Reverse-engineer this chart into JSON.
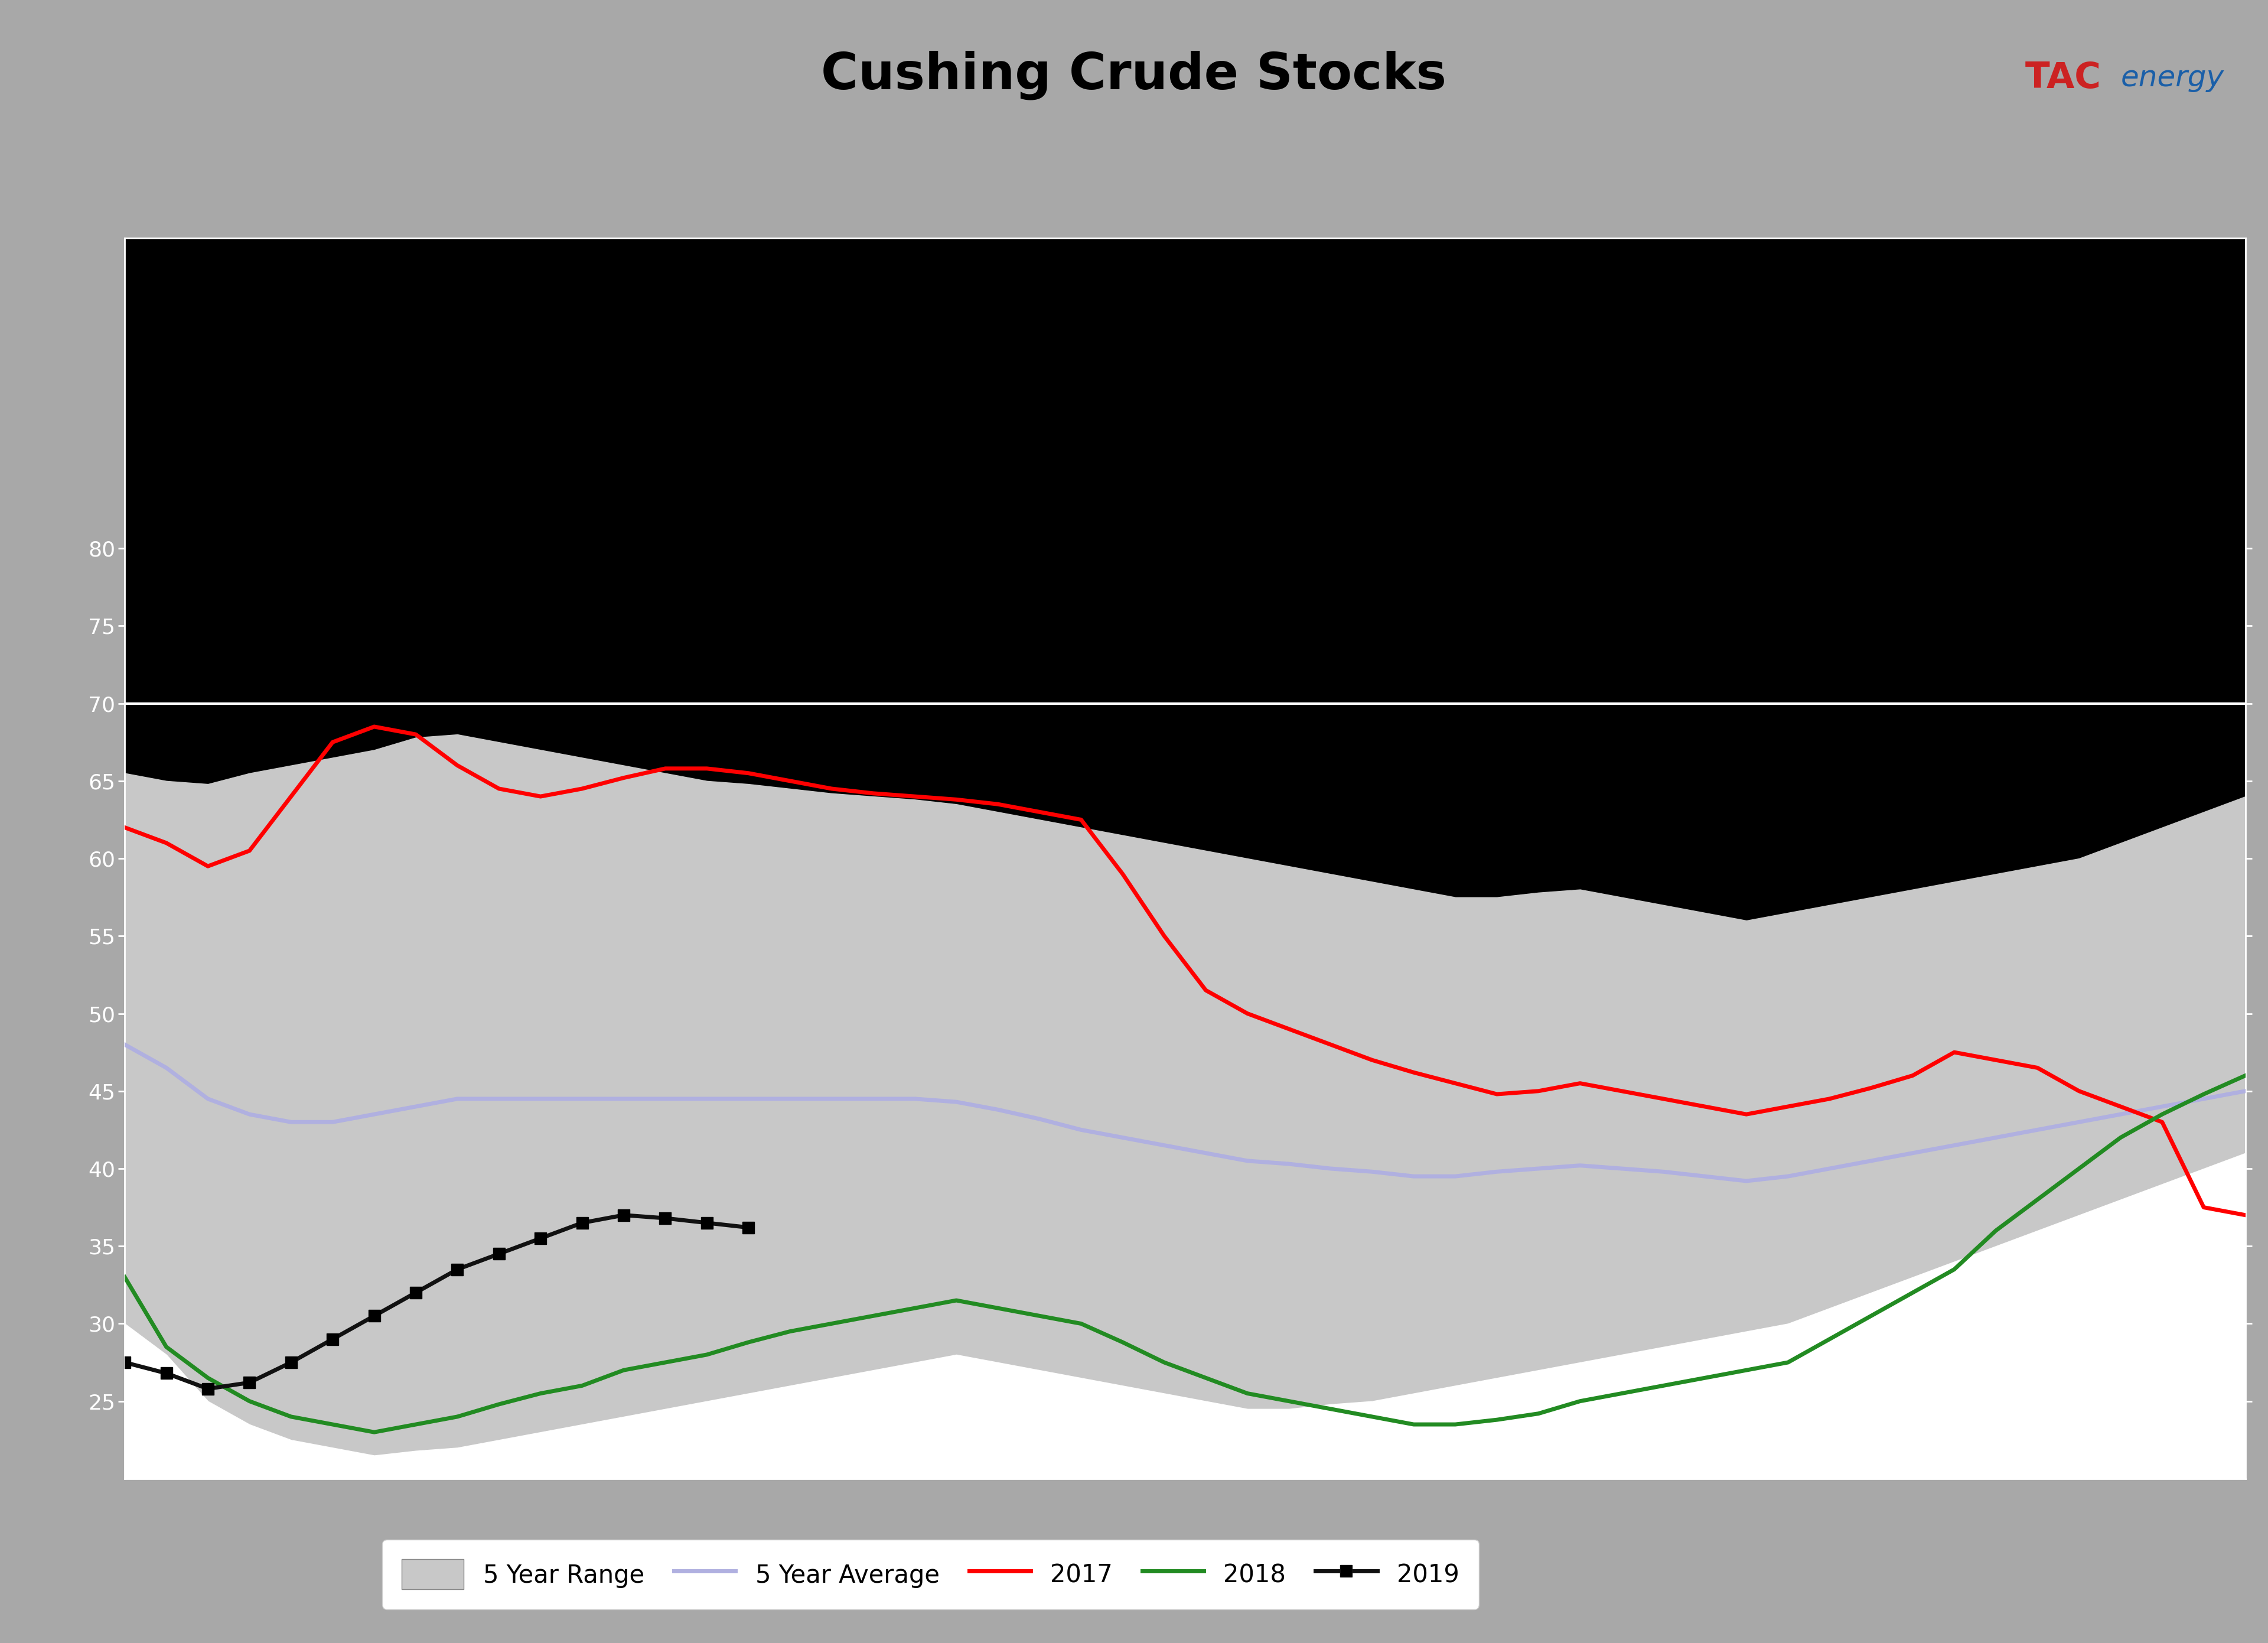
{
  "title": "Cushing Crude Stocks",
  "header_bg": "#a8a8a8",
  "header_blue": "#1a5fa8",
  "chart_bg": "#000000",
  "ylim": [
    20,
    100
  ],
  "xlim": [
    0,
    51
  ],
  "weeks": 52,
  "range_color": "#c8c8c8",
  "range_alpha": 1.0,
  "avg_color": "#b0b0e0",
  "y2017_color": "#ff0000",
  "y2018_color": "#228B22",
  "y2019_color": "#111111",
  "range_upper": [
    65.5,
    65.0,
    64.8,
    65.5,
    66.0,
    66.5,
    67.0,
    67.8,
    68.0,
    67.5,
    67.0,
    66.5,
    66.0,
    65.5,
    65.0,
    64.8,
    64.5,
    64.2,
    64.0,
    63.8,
    63.5,
    63.0,
    62.5,
    62.0,
    61.5,
    61.0,
    60.5,
    60.0,
    59.5,
    59.0,
    58.5,
    58.0,
    57.5,
    57.5,
    57.8,
    58.0,
    57.5,
    57.0,
    56.5,
    56.0,
    56.5,
    57.0,
    57.5,
    58.0,
    58.5,
    59.0,
    59.5,
    60.0,
    61.0,
    62.0,
    63.0,
    64.0
  ],
  "range_lower": [
    30.0,
    28.0,
    25.0,
    23.5,
    22.5,
    22.0,
    21.5,
    21.8,
    22.0,
    22.5,
    23.0,
    23.5,
    24.0,
    24.5,
    25.0,
    25.5,
    26.0,
    26.5,
    27.0,
    27.5,
    28.0,
    27.5,
    27.0,
    26.5,
    26.0,
    25.5,
    25.0,
    24.5,
    24.5,
    24.8,
    25.0,
    25.5,
    26.0,
    26.5,
    27.0,
    27.5,
    28.0,
    28.5,
    29.0,
    29.5,
    30.0,
    31.0,
    32.0,
    33.0,
    34.0,
    35.0,
    36.0,
    37.0,
    38.0,
    39.0,
    40.0,
    41.0
  ],
  "avg": [
    48.0,
    46.5,
    44.5,
    43.5,
    43.0,
    43.0,
    43.5,
    44.0,
    44.5,
    44.5,
    44.5,
    44.5,
    44.5,
    44.5,
    44.5,
    44.5,
    44.5,
    44.5,
    44.5,
    44.5,
    44.3,
    43.8,
    43.2,
    42.5,
    42.0,
    41.5,
    41.0,
    40.5,
    40.3,
    40.0,
    39.8,
    39.5,
    39.5,
    39.8,
    40.0,
    40.2,
    40.0,
    39.8,
    39.5,
    39.2,
    39.5,
    40.0,
    40.5,
    41.0,
    41.5,
    42.0,
    42.5,
    43.0,
    43.5,
    44.0,
    44.5,
    45.0
  ],
  "y2017": [
    62.0,
    61.0,
    59.5,
    60.5,
    64.0,
    67.5,
    68.5,
    68.0,
    66.0,
    64.5,
    64.0,
    64.5,
    65.2,
    65.8,
    65.8,
    65.5,
    65.0,
    64.5,
    64.2,
    64.0,
    63.8,
    63.5,
    63.0,
    62.5,
    59.0,
    55.0,
    51.5,
    50.0,
    49.0,
    48.0,
    47.0,
    46.2,
    45.5,
    44.8,
    45.0,
    45.5,
    45.0,
    44.5,
    44.0,
    43.5,
    44.0,
    44.5,
    45.2,
    46.0,
    47.5,
    47.0,
    46.5,
    45.0,
    44.0,
    43.0,
    37.5,
    37.0
  ],
  "y2018": [
    33.0,
    28.5,
    26.5,
    25.0,
    24.0,
    23.5,
    23.0,
    23.5,
    24.0,
    24.8,
    25.5,
    26.0,
    27.0,
    27.5,
    28.0,
    28.8,
    29.5,
    30.0,
    30.5,
    31.0,
    31.5,
    31.0,
    30.5,
    30.0,
    28.8,
    27.5,
    26.5,
    25.5,
    25.0,
    24.5,
    24.0,
    23.5,
    23.5,
    23.8,
    24.2,
    25.0,
    25.5,
    26.0,
    26.5,
    27.0,
    27.5,
    29.0,
    30.5,
    32.0,
    33.5,
    36.0,
    38.0,
    40.0,
    42.0,
    43.5,
    44.8,
    46.0
  ],
  "y2019": [
    27.5,
    26.8,
    25.8,
    26.2,
    27.5,
    29.0,
    30.5,
    32.0,
    33.5,
    34.5,
    35.5,
    36.5,
    37.0,
    36.8,
    36.5,
    36.2
  ],
  "tick_color": "#ffffff",
  "legend_bg": "#ffffff",
  "yticks": [
    25,
    30,
    35,
    40,
    45,
    50,
    55,
    60,
    65,
    70,
    75,
    80
  ],
  "white_line_y": 70
}
